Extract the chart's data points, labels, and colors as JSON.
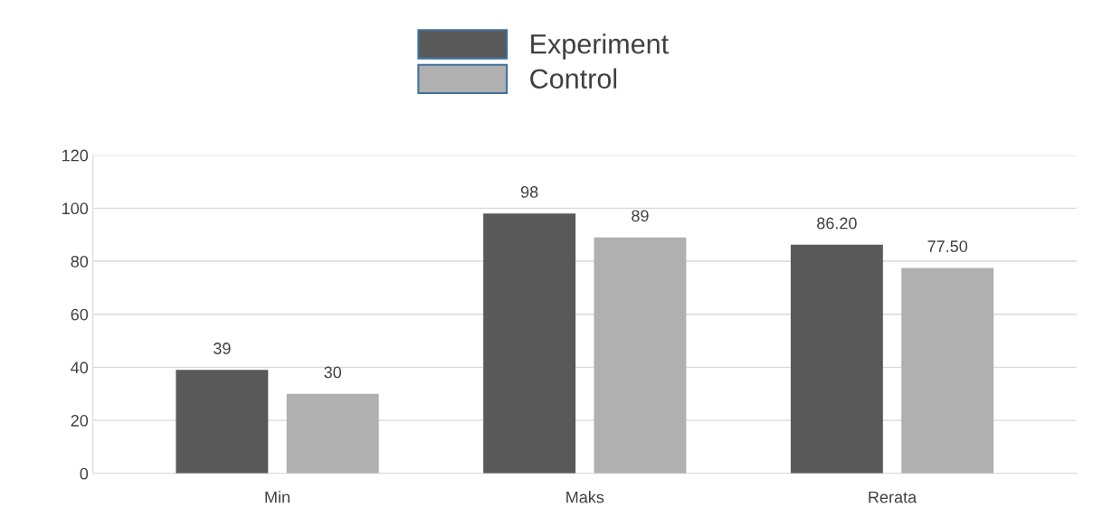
{
  "chart_data": {
    "type": "bar",
    "categories": [
      "Min",
      "Maks",
      "Rerata"
    ],
    "series": [
      {
        "name": "Experiment",
        "color": "#595959",
        "values": [
          39,
          98,
          86.2
        ],
        "value_labels": [
          "39",
          "98",
          "86.20"
        ]
      },
      {
        "name": "Control",
        "color": "#b0b0b0",
        "values": [
          30,
          89,
          77.5
        ],
        "value_labels": [
          "30",
          "89",
          "77.50"
        ]
      }
    ],
    "ylim": [
      0,
      120
    ],
    "yticks": [
      0,
      20,
      40,
      60,
      80,
      100,
      120
    ],
    "grid": "y",
    "legend": "top"
  }
}
